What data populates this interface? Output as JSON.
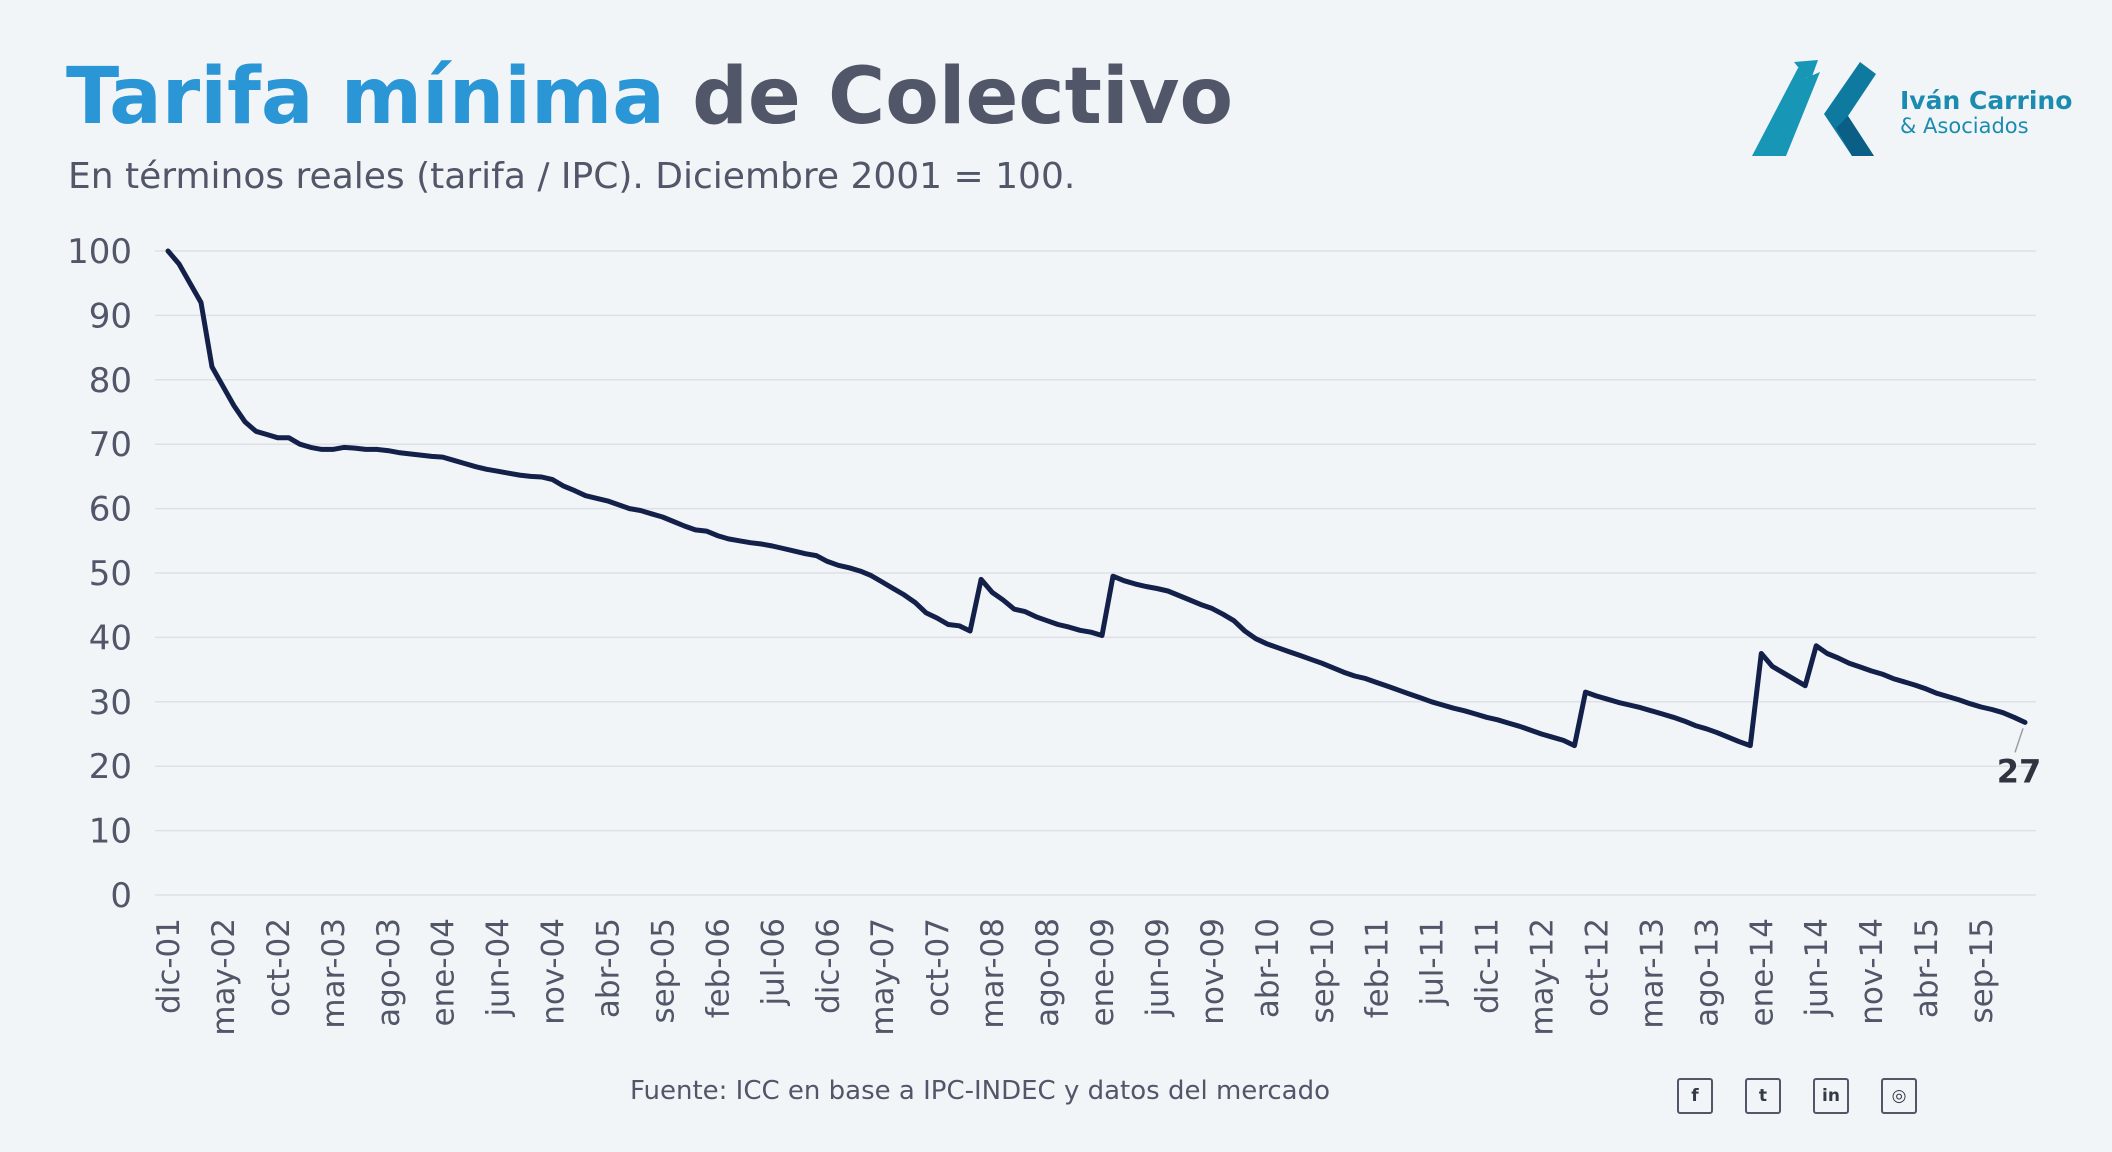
{
  "header": {
    "title_highlight": "Tarifa mínima",
    "title_rest": "de Colectivo",
    "subtitle": "En términos reales (tarifa / IPC). Diciembre 2001 = 100."
  },
  "brand": {
    "name": "Iván Carrino",
    "sub": "& Asociados",
    "color": "#1b8cb0"
  },
  "footer": {
    "source": "Fuente: ICC en base a IPC-INDEC y datos del mercado",
    "social": [
      {
        "icon": "facebook-icon",
        "glyph": "f"
      },
      {
        "icon": "twitter-icon",
        "glyph": "t"
      },
      {
        "icon": "linkedin-icon",
        "glyph": "in"
      },
      {
        "icon": "instagram-icon",
        "glyph": "◎"
      }
    ]
  },
  "colors": {
    "title_highlight": "#2a96d6",
    "text": "#515669",
    "line": "#13214a",
    "grid": "#dde1e5",
    "background": "#f2f5f7"
  },
  "chart_data": {
    "type": "line",
    "ylim": [
      0,
      100
    ],
    "yticks": [
      0,
      10,
      20,
      30,
      40,
      50,
      60,
      70,
      80,
      90,
      100
    ],
    "grid": true,
    "x_start": "dic-01",
    "x_end": "feb-16",
    "xtick_labels": [
      "dic-01",
      "may-02",
      "oct-02",
      "mar-03",
      "ago-03",
      "ene-04",
      "jun-04",
      "nov-04",
      "abr-05",
      "sep-05",
      "feb-06",
      "jul-06",
      "dic-06",
      "may-07",
      "oct-07",
      "mar-08",
      "ago-08",
      "ene-09",
      "jun-09",
      "nov-09",
      "abr-10",
      "sep-10",
      "feb-11",
      "jul-11",
      "dic-11",
      "may-12",
      "oct-12",
      "mar-13",
      "ago-13",
      "ene-14",
      "jun-14",
      "nov-14",
      "abr-15",
      "sep-15"
    ],
    "end_label": "27",
    "series": [
      {
        "points": [
          [
            "dic-01",
            100
          ],
          [
            "ene-02",
            98
          ],
          [
            "feb-02",
            95
          ],
          [
            "mar-02",
            92
          ],
          [
            "abr-02",
            82
          ],
          [
            "may-02",
            79
          ],
          [
            "jun-02",
            76
          ],
          [
            "jul-02",
            73.5
          ],
          [
            "ago-02",
            72
          ],
          [
            "sep-02",
            71.5
          ],
          [
            "oct-02",
            71
          ],
          [
            "nov-02",
            71
          ],
          [
            "dic-02",
            70
          ],
          [
            "ene-03",
            69.5
          ],
          [
            "feb-03",
            69.2
          ],
          [
            "mar-03",
            69.2
          ],
          [
            "abr-03",
            69.5
          ],
          [
            "may-03",
            69.4
          ],
          [
            "jun-03",
            69.2
          ],
          [
            "jul-03",
            69.2
          ],
          [
            "ago-03",
            69
          ],
          [
            "sep-03",
            68.7
          ],
          [
            "oct-03",
            68.5
          ],
          [
            "nov-03",
            68.3
          ],
          [
            "dic-03",
            68.1
          ],
          [
            "ene-04",
            68
          ],
          [
            "feb-04",
            67.5
          ],
          [
            "mar-04",
            67
          ],
          [
            "abr-04",
            66.5
          ],
          [
            "may-04",
            66.1
          ],
          [
            "jun-04",
            65.8
          ],
          [
            "jul-04",
            65.5
          ],
          [
            "ago-04",
            65.2
          ],
          [
            "sep-04",
            65
          ],
          [
            "oct-04",
            64.9
          ],
          [
            "nov-04",
            64.5
          ],
          [
            "dic-04",
            63.5
          ],
          [
            "ene-05",
            62.8
          ],
          [
            "feb-05",
            62
          ],
          [
            "mar-05",
            61.6
          ],
          [
            "abr-05",
            61.2
          ],
          [
            "may-05",
            60.6
          ],
          [
            "jun-05",
            60
          ],
          [
            "jul-05",
            59.7
          ],
          [
            "ago-05",
            59.2
          ],
          [
            "sep-05",
            58.7
          ],
          [
            "oct-05",
            58
          ],
          [
            "nov-05",
            57.3
          ],
          [
            "dic-05",
            56.7
          ],
          [
            "ene-06",
            56.5
          ],
          [
            "feb-06",
            55.8
          ],
          [
            "mar-06",
            55.3
          ],
          [
            "abr-06",
            55
          ],
          [
            "may-06",
            54.7
          ],
          [
            "jun-06",
            54.5
          ],
          [
            "jul-06",
            54.2
          ],
          [
            "ago-06",
            53.8
          ],
          [
            "sep-06",
            53.4
          ],
          [
            "oct-06",
            53
          ],
          [
            "nov-06",
            52.7
          ],
          [
            "dic-06",
            51.8
          ],
          [
            "ene-07",
            51.2
          ],
          [
            "feb-07",
            50.8
          ],
          [
            "mar-07",
            50.3
          ],
          [
            "abr-07",
            49.6
          ],
          [
            "may-07",
            48.6
          ],
          [
            "jun-07",
            47.6
          ],
          [
            "jul-07",
            46.6
          ],
          [
            "ago-07",
            45.4
          ],
          [
            "sep-07",
            43.8
          ],
          [
            "oct-07",
            43
          ],
          [
            "nov-07",
            42
          ],
          [
            "dic-07",
            41.8
          ],
          [
            "ene-08",
            41
          ],
          [
            "feb-08",
            49
          ],
          [
            "mar-08",
            47
          ],
          [
            "abr-08",
            45.8
          ],
          [
            "may-08",
            44.4
          ],
          [
            "jun-08",
            44
          ],
          [
            "jul-08",
            43.2
          ],
          [
            "ago-08",
            42.6
          ],
          [
            "sep-08",
            42
          ],
          [
            "oct-08",
            41.6
          ],
          [
            "nov-08",
            41.1
          ],
          [
            "dic-08",
            40.8
          ],
          [
            "ene-09",
            40.3
          ],
          [
            "feb-09",
            49.5
          ],
          [
            "mar-09",
            48.8
          ],
          [
            "abr-09",
            48.3
          ],
          [
            "may-09",
            47.9
          ],
          [
            "jun-09",
            47.6
          ],
          [
            "jul-09",
            47.2
          ],
          [
            "ago-09",
            46.5
          ],
          [
            "sep-09",
            45.8
          ],
          [
            "oct-09",
            45.1
          ],
          [
            "nov-09",
            44.5
          ],
          [
            "dic-09",
            43.6
          ],
          [
            "ene-10",
            42.6
          ],
          [
            "feb-10",
            41
          ],
          [
            "mar-10",
            39.8
          ],
          [
            "abr-10",
            39
          ],
          [
            "may-10",
            38.4
          ],
          [
            "jun-10",
            37.8
          ],
          [
            "jul-10",
            37.2
          ],
          [
            "ago-10",
            36.6
          ],
          [
            "sep-10",
            36
          ],
          [
            "oct-10",
            35.3
          ],
          [
            "nov-10",
            34.6
          ],
          [
            "dic-10",
            34
          ],
          [
            "ene-11",
            33.6
          ],
          [
            "feb-11",
            33
          ],
          [
            "mar-11",
            32.4
          ],
          [
            "abr-11",
            31.8
          ],
          [
            "may-11",
            31.2
          ],
          [
            "jun-11",
            30.6
          ],
          [
            "jul-11",
            30
          ],
          [
            "ago-11",
            29.5
          ],
          [
            "sep-11",
            29
          ],
          [
            "oct-11",
            28.6
          ],
          [
            "nov-11",
            28.1
          ],
          [
            "dic-11",
            27.6
          ],
          [
            "ene-12",
            27.2
          ],
          [
            "feb-12",
            26.7
          ],
          [
            "mar-12",
            26.2
          ],
          [
            "abr-12",
            25.6
          ],
          [
            "may-12",
            25
          ],
          [
            "jun-12",
            24.5
          ],
          [
            "jul-12",
            24
          ],
          [
            "ago-12",
            23.2
          ],
          [
            "sep-12",
            31.5
          ],
          [
            "oct-12",
            30.9
          ],
          [
            "nov-12",
            30.4
          ],
          [
            "dic-12",
            29.9
          ],
          [
            "ene-13",
            29.5
          ],
          [
            "feb-13",
            29.1
          ],
          [
            "mar-13",
            28.6
          ],
          [
            "abr-13",
            28.1
          ],
          [
            "may-13",
            27.6
          ],
          [
            "jun-13",
            27
          ],
          [
            "jul-13",
            26.3
          ],
          [
            "ago-13",
            25.8
          ],
          [
            "sep-13",
            25.2
          ],
          [
            "oct-13",
            24.5
          ],
          [
            "nov-13",
            23.8
          ],
          [
            "dic-13",
            23.2
          ],
          [
            "ene-14",
            37.5
          ],
          [
            "feb-14",
            35.5
          ],
          [
            "mar-14",
            34.5
          ],
          [
            "abr-14",
            33.5
          ],
          [
            "may-14",
            32.5
          ],
          [
            "jun-14",
            38.7
          ],
          [
            "jul-14",
            37.5
          ],
          [
            "ago-14",
            36.8
          ],
          [
            "sep-14",
            36
          ],
          [
            "oct-14",
            35.4
          ],
          [
            "nov-14",
            34.8
          ],
          [
            "dic-14",
            34.3
          ],
          [
            "ene-15",
            33.6
          ],
          [
            "feb-15",
            33.1
          ],
          [
            "mar-15",
            32.6
          ],
          [
            "abr-15",
            32
          ],
          [
            "may-15",
            31.3
          ],
          [
            "jun-15",
            30.8
          ],
          [
            "jul-15",
            30.3
          ],
          [
            "ago-15",
            29.7
          ],
          [
            "sep-15",
            29.2
          ],
          [
            "oct-15",
            28.8
          ],
          [
            "nov-15",
            28.3
          ],
          [
            "dic-15",
            27.6
          ],
          [
            "ene-16",
            26.8
          ]
        ]
      }
    ]
  }
}
